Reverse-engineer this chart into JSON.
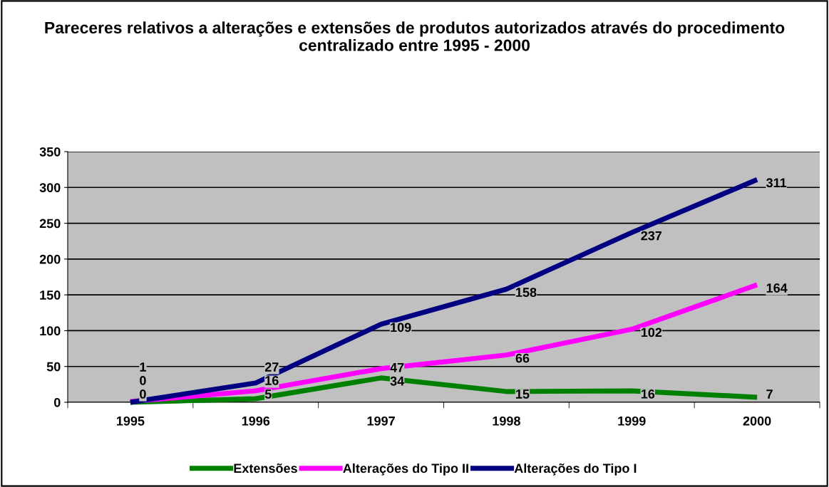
{
  "chart_data": {
    "type": "line",
    "title": "Pareceres relativos a alterações e extensões de produtos autorizados através do procedimento centralizado entre 1995 - 2000",
    "categories": [
      "1995",
      "1996",
      "1997",
      "1998",
      "1999",
      "2000"
    ],
    "series": [
      {
        "name": "Extensões",
        "color": "#008000",
        "values": [
          0,
          5,
          34,
          15,
          16,
          7
        ]
      },
      {
        "name": "Alterações do Tipo II",
        "color": "#ff00ff",
        "values": [
          1,
          16,
          47,
          66,
          102,
          164
        ]
      },
      {
        "name": "Alterações do Tipo I",
        "color": "#000080",
        "values": [
          0,
          27,
          109,
          158,
          237,
          311
        ]
      }
    ],
    "ylim": [
      0,
      350
    ],
    "yticks": [
      0,
      50,
      100,
      150,
      200,
      250,
      300,
      350
    ],
    "grid": "y",
    "legend": "bottom",
    "data_labels": true,
    "marker": "none",
    "line_style": "solid"
  }
}
